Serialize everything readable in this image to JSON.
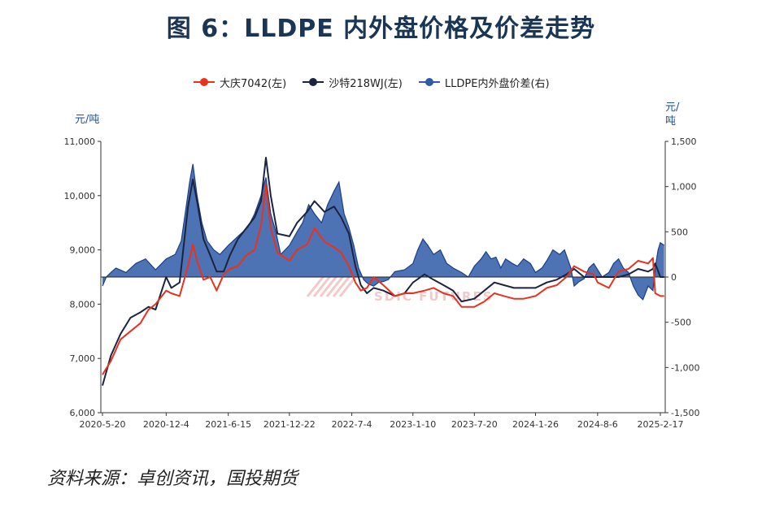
{
  "title": "图 6：LLDPE 内外盘价格及价差走势",
  "source": "资料来源：卓创资讯，国投期货",
  "watermark": "SDIC FUTURES",
  "colors": {
    "daqing": "#e8321e",
    "shate": "#1c2340",
    "spread": "#2e5aa8"
  },
  "chart_data": {
    "type": "line",
    "title": "图 6：LLDPE 内外盘价格及价差走势",
    "legend_position": "top",
    "left_axis": {
      "unit": "元/吨",
      "ylim": [
        6000,
        11000
      ],
      "ticks": [
        "11,000",
        "10,000",
        "9,000",
        "8,000",
        "7,000",
        "6,000"
      ]
    },
    "right_axis": {
      "unit": "元/吨",
      "ylim": [
        -1500,
        1500
      ],
      "ticks": [
        "1,500",
        "1,000",
        "500",
        "0",
        "-500",
        "-1,000",
        "-1,500"
      ]
    },
    "x_ticks": [
      "2020-5-20",
      "2020-12-4",
      "2021-6-15",
      "2021-12-22",
      "2022-7-4",
      "2023-1-10",
      "2023-7-20",
      "2024-1-26",
      "2024-8-6",
      "2025-2-17"
    ],
    "series": [
      {
        "name": "大庆7042(左)",
        "axis": "left",
        "style": "line",
        "points": [
          [
            "2020-05-20",
            6700
          ],
          [
            "2020-06-15",
            6950
          ],
          [
            "2020-07-15",
            7350
          ],
          [
            "2020-08-15",
            7500
          ],
          [
            "2020-09-15",
            7650
          ],
          [
            "2020-10-10",
            7900
          ],
          [
            "2020-11-01",
            8000
          ],
          [
            "2020-12-04",
            8250
          ],
          [
            "2020-12-20",
            8200
          ],
          [
            "2021-01-15",
            8150
          ],
          [
            "2021-02-10",
            8700
          ],
          [
            "2021-02-25",
            9100
          ],
          [
            "2021-03-10",
            8800
          ],
          [
            "2021-03-30",
            8450
          ],
          [
            "2021-04-20",
            8500
          ],
          [
            "2021-05-10",
            8250
          ],
          [
            "2021-06-01",
            8550
          ],
          [
            "2021-06-20",
            8650
          ],
          [
            "2021-07-15",
            8700
          ],
          [
            "2021-08-10",
            8900
          ],
          [
            "2021-09-05",
            9000
          ],
          [
            "2021-09-25",
            9450
          ],
          [
            "2021-10-10",
            10200
          ],
          [
            "2021-10-25",
            9400
          ],
          [
            "2021-11-15",
            8950
          ],
          [
            "2021-12-22",
            8800
          ],
          [
            "2022-01-15",
            9000
          ],
          [
            "2022-02-15",
            9100
          ],
          [
            "2022-03-10",
            9400
          ],
          [
            "2022-04-10",
            9150
          ],
          [
            "2022-05-10",
            9050
          ],
          [
            "2022-06-01",
            8950
          ],
          [
            "2022-06-25",
            8700
          ],
          [
            "2022-07-15",
            8400
          ],
          [
            "2022-08-01",
            8250
          ],
          [
            "2022-08-20",
            8300
          ],
          [
            "2022-09-10",
            8500
          ],
          [
            "2022-10-10",
            8350
          ],
          [
            "2022-11-15",
            8150
          ],
          [
            "2022-12-15",
            8200
          ],
          [
            "2023-01-10",
            8200
          ],
          [
            "2023-02-15",
            8250
          ],
          [
            "2023-03-15",
            8300
          ],
          [
            "2023-04-15",
            8200
          ],
          [
            "2023-05-15",
            8150
          ],
          [
            "2023-06-10",
            7950
          ],
          [
            "2023-07-20",
            7950
          ],
          [
            "2023-08-20",
            8050
          ],
          [
            "2023-09-20",
            8200
          ],
          [
            "2023-10-20",
            8150
          ],
          [
            "2023-11-20",
            8100
          ],
          [
            "2023-12-20",
            8100
          ],
          [
            "2024-01-26",
            8150
          ],
          [
            "2024-03-01",
            8300
          ],
          [
            "2024-04-01",
            8350
          ],
          [
            "2024-05-01",
            8500
          ],
          [
            "2024-05-25",
            8700
          ],
          [
            "2024-06-25",
            8600
          ],
          [
            "2024-07-25",
            8550
          ],
          [
            "2024-08-06",
            8400
          ],
          [
            "2024-09-10",
            8300
          ],
          [
            "2024-10-10",
            8600
          ],
          [
            "2024-11-10",
            8650
          ],
          [
            "2024-12-10",
            8800
          ],
          [
            "2025-01-10",
            8750
          ],
          [
            "2025-01-25",
            8850
          ],
          [
            "2025-02-01",
            8200
          ],
          [
            "2025-02-17",
            8150
          ],
          [
            "2025-03-01",
            8150
          ]
        ]
      },
      {
        "name": "沙特218WJ(左)",
        "axis": "left",
        "style": "line",
        "points": [
          [
            "2020-05-20",
            6500
          ],
          [
            "2020-06-15",
            7050
          ],
          [
            "2020-07-15",
            7450
          ],
          [
            "2020-08-15",
            7750
          ],
          [
            "2020-09-15",
            7850
          ],
          [
            "2020-10-10",
            7950
          ],
          [
            "2020-11-01",
            7900
          ],
          [
            "2020-12-04",
            8500
          ],
          [
            "2020-12-20",
            8300
          ],
          [
            "2021-01-15",
            8400
          ],
          [
            "2021-02-10",
            9800
          ],
          [
            "2021-02-25",
            10300
          ],
          [
            "2021-03-10",
            9900
          ],
          [
            "2021-03-30",
            9200
          ],
          [
            "2021-04-20",
            8900
          ],
          [
            "2021-05-10",
            8600
          ],
          [
            "2021-06-01",
            8600
          ],
          [
            "2021-06-20",
            8900
          ],
          [
            "2021-07-15",
            9200
          ],
          [
            "2021-08-10",
            9400
          ],
          [
            "2021-09-05",
            9600
          ],
          [
            "2021-09-25",
            9900
          ],
          [
            "2021-10-10",
            10700
          ],
          [
            "2021-10-25",
            10000
          ],
          [
            "2021-11-15",
            9300
          ],
          [
            "2021-12-22",
            9250
          ],
          [
            "2022-01-15",
            9500
          ],
          [
            "2022-02-15",
            9700
          ],
          [
            "2022-03-10",
            9900
          ],
          [
            "2022-04-10",
            9700
          ],
          [
            "2022-05-10",
            9800
          ],
          [
            "2022-06-01",
            9600
          ],
          [
            "2022-06-25",
            9300
          ],
          [
            "2022-07-15",
            8700
          ],
          [
            "2022-08-01",
            8350
          ],
          [
            "2022-08-20",
            8200
          ],
          [
            "2022-09-10",
            8300
          ],
          [
            "2022-10-10",
            8250
          ],
          [
            "2022-11-15",
            8150
          ],
          [
            "2022-12-15",
            8200
          ],
          [
            "2023-01-10",
            8400
          ],
          [
            "2023-02-15",
            8550
          ],
          [
            "2023-03-15",
            8450
          ],
          [
            "2023-04-15",
            8350
          ],
          [
            "2023-05-15",
            8250
          ],
          [
            "2023-06-10",
            8050
          ],
          [
            "2023-07-20",
            8100
          ],
          [
            "2023-08-20",
            8250
          ],
          [
            "2023-09-20",
            8400
          ],
          [
            "2023-10-20",
            8350
          ],
          [
            "2023-11-20",
            8300
          ],
          [
            "2023-12-20",
            8300
          ],
          [
            "2024-01-26",
            8300
          ],
          [
            "2024-03-01",
            8400
          ],
          [
            "2024-04-01",
            8450
          ],
          [
            "2024-05-01",
            8550
          ],
          [
            "2024-05-25",
            8650
          ],
          [
            "2024-06-25",
            8500
          ],
          [
            "2024-07-25",
            8500
          ],
          [
            "2024-08-06",
            8500
          ],
          [
            "2024-09-10",
            8500
          ],
          [
            "2024-10-10",
            8500
          ],
          [
            "2024-11-10",
            8550
          ],
          [
            "2024-12-10",
            8650
          ],
          [
            "2025-01-10",
            8600
          ],
          [
            "2025-01-25",
            8650
          ],
          [
            "2025-02-01",
            8750
          ],
          [
            "2025-02-17",
            8500
          ],
          [
            "2025-03-01",
            8500
          ]
        ]
      },
      {
        "name": "LLDPE内外盘价差(右)",
        "axis": "right",
        "style": "area",
        "points": [
          [
            "2020-05-20",
            -100
          ],
          [
            "2020-06-01",
            0
          ],
          [
            "2020-06-15",
            50
          ],
          [
            "2020-07-01",
            100
          ],
          [
            "2020-08-01",
            50
          ],
          [
            "2020-09-01",
            150
          ],
          [
            "2020-10-01",
            200
          ],
          [
            "2020-11-01",
            80
          ],
          [
            "2020-12-04",
            200
          ],
          [
            "2021-01-01",
            250
          ],
          [
            "2021-01-20",
            400
          ],
          [
            "2021-02-01",
            700
          ],
          [
            "2021-02-15",
            1050
          ],
          [
            "2021-02-25",
            1250
          ],
          [
            "2021-03-10",
            900
          ],
          [
            "2021-03-25",
            600
          ],
          [
            "2021-04-10",
            400
          ],
          [
            "2021-05-01",
            300
          ],
          [
            "2021-05-20",
            250
          ],
          [
            "2021-06-15",
            350
          ],
          [
            "2021-07-15",
            450
          ],
          [
            "2021-08-15",
            550
          ],
          [
            "2021-09-05",
            700
          ],
          [
            "2021-09-25",
            900
          ],
          [
            "2021-10-10",
            1100
          ],
          [
            "2021-10-25",
            700
          ],
          [
            "2021-11-10",
            500
          ],
          [
            "2021-11-25",
            250
          ],
          [
            "2021-12-22",
            350
          ],
          [
            "2022-01-15",
            500
          ],
          [
            "2022-02-01",
            600
          ],
          [
            "2022-02-20",
            800
          ],
          [
            "2022-03-10",
            700
          ],
          [
            "2022-04-01",
            600
          ],
          [
            "2022-04-20",
            800
          ],
          [
            "2022-05-10",
            950
          ],
          [
            "2022-05-25",
            1050
          ],
          [
            "2022-06-10",
            700
          ],
          [
            "2022-06-25",
            550
          ],
          [
            "2022-07-10",
            350
          ],
          [
            "2022-07-25",
            100
          ],
          [
            "2022-08-10",
            -30
          ],
          [
            "2022-08-25",
            -80
          ],
          [
            "2022-09-10",
            -100
          ],
          [
            "2022-09-25",
            -60
          ],
          [
            "2022-10-10",
            -50
          ],
          [
            "2022-10-25",
            -30
          ],
          [
            "2022-11-15",
            60
          ],
          [
            "2022-12-15",
            80
          ],
          [
            "2023-01-10",
            150
          ],
          [
            "2023-01-25",
            300
          ],
          [
            "2023-02-10",
            420
          ],
          [
            "2023-02-25",
            350
          ],
          [
            "2023-03-15",
            250
          ],
          [
            "2023-04-05",
            300
          ],
          [
            "2023-04-25",
            150
          ],
          [
            "2023-05-15",
            100
          ],
          [
            "2023-06-10",
            50
          ],
          [
            "2023-07-01",
            0
          ],
          [
            "2023-07-20",
            120
          ],
          [
            "2023-08-10",
            200
          ],
          [
            "2023-08-25",
            280
          ],
          [
            "2023-09-10",
            200
          ],
          [
            "2023-09-25",
            220
          ],
          [
            "2023-10-10",
            100
          ],
          [
            "2023-10-25",
            200
          ],
          [
            "2023-11-15",
            150
          ],
          [
            "2023-12-01",
            120
          ],
          [
            "2023-12-20",
            200
          ],
          [
            "2024-01-10",
            150
          ],
          [
            "2024-01-26",
            50
          ],
          [
            "2024-02-15",
            100
          ],
          [
            "2024-03-01",
            180
          ],
          [
            "2024-03-20",
            300
          ],
          [
            "2024-04-10",
            250
          ],
          [
            "2024-04-25",
            300
          ],
          [
            "2024-05-15",
            100
          ],
          [
            "2024-05-25",
            -100
          ],
          [
            "2024-06-10",
            -50
          ],
          [
            "2024-06-25",
            -20
          ],
          [
            "2024-07-10",
            100
          ],
          [
            "2024-07-25",
            150
          ],
          [
            "2024-08-06",
            80
          ],
          [
            "2024-08-20",
            0
          ],
          [
            "2024-09-10",
            50
          ],
          [
            "2024-09-25",
            150
          ],
          [
            "2024-10-10",
            200
          ],
          [
            "2024-10-25",
            100
          ],
          [
            "2024-11-10",
            50
          ],
          [
            "2024-11-25",
            -100
          ],
          [
            "2024-12-10",
            -200
          ],
          [
            "2024-12-25",
            -250
          ],
          [
            "2025-01-10",
            -100
          ],
          [
            "2025-01-25",
            -150
          ],
          [
            "2025-02-01",
            100
          ],
          [
            "2025-02-10",
            300
          ],
          [
            "2025-02-17",
            380
          ],
          [
            "2025-03-01",
            350
          ]
        ]
      }
    ]
  }
}
